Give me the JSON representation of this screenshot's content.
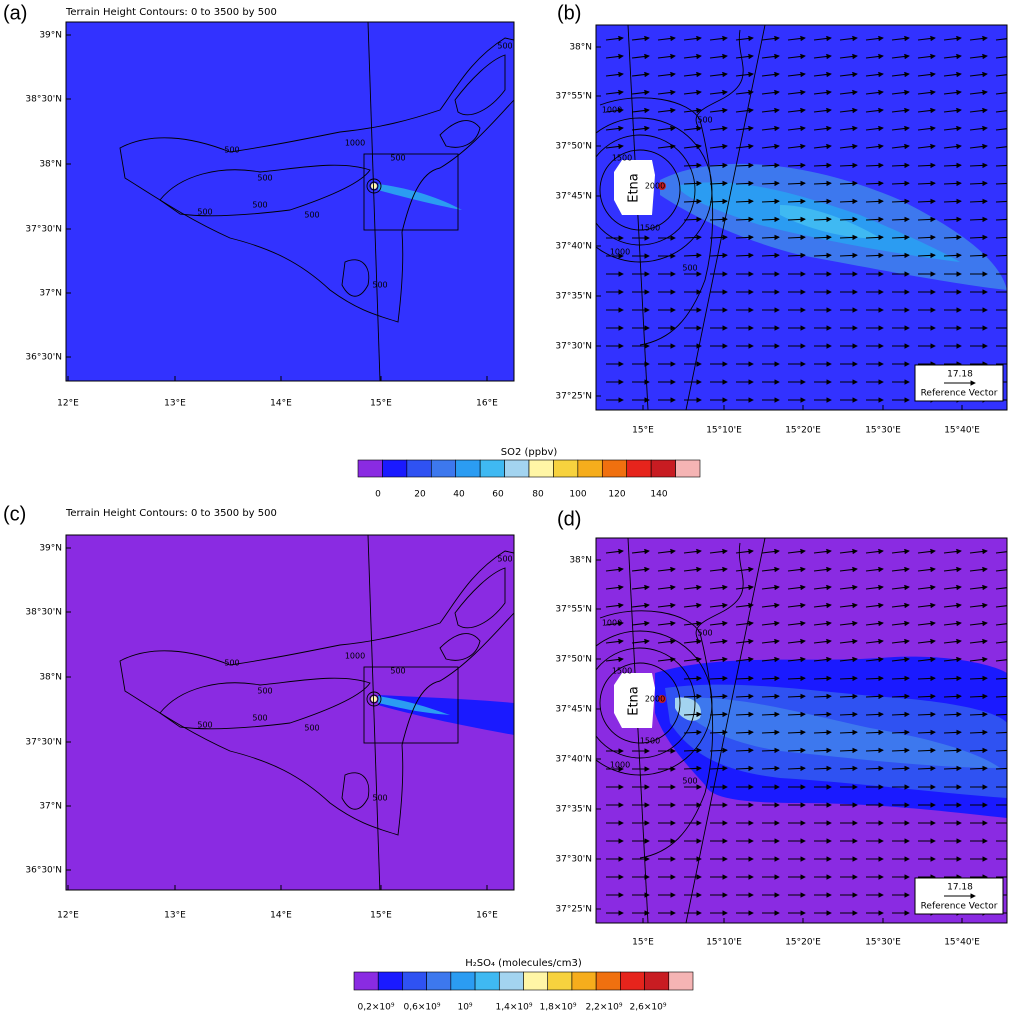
{
  "panels": [
    {
      "label": "(a)",
      "title": "Terrain Height Contours: 0 to 3500 by 500",
      "lat_labels": [
        "39°N",
        "38°30'N",
        "38°N",
        "37°30'N",
        "37°N",
        "36°30'N"
      ],
      "lon_labels": [
        "12°E",
        "13°E",
        "14°E",
        "15°E",
        "16°E"
      ],
      "contour_labels": [
        "500",
        "500",
        "500",
        "1000",
        "500",
        "500",
        "500",
        "500",
        "500"
      ]
    },
    {
      "label": "(b)",
      "lat_labels": [
        "38°N",
        "37°55'N",
        "37°50'N",
        "37°45'N",
        "37°40'N",
        "37°35'N",
        "37°30'N",
        "37°25'N"
      ],
      "lon_labels": [
        "15°E",
        "15°10'E",
        "15°20'E",
        "15°30'E",
        "15°40'E"
      ],
      "contour_labels": [
        "1000",
        "500",
        "1500",
        "2000",
        "1500",
        "1000",
        "500"
      ],
      "marker": "Etna",
      "reference": {
        "value": "17.18",
        "label": "Reference Vector"
      }
    },
    {
      "label": "(c)",
      "title": "Terrain Height Contours: 0 to 3500 by 500",
      "lat_labels": [
        "39°N",
        "38°30'N",
        "38°N",
        "37°30'N",
        "37°N",
        "36°30'N"
      ],
      "lon_labels": [
        "12°E",
        "13°E",
        "14°E",
        "15°E",
        "16°E"
      ],
      "contour_labels": [
        "500",
        "500",
        "500",
        "1000",
        "500",
        "500",
        "500",
        "500",
        "500"
      ]
    },
    {
      "label": "(d)",
      "lat_labels": [
        "38°N",
        "37°55'N",
        "37°50'N",
        "37°45'N",
        "37°40'N",
        "37°35'N",
        "37°30'N",
        "37°25'N"
      ],
      "lon_labels": [
        "15°E",
        "15°10'E",
        "15°20'E",
        "15°30'E",
        "15°40'E"
      ],
      "contour_labels": [
        "1000",
        "500",
        "1500",
        "2000",
        "1500",
        "1000",
        "500"
      ],
      "marker": "Etna",
      "reference": {
        "value": "17.18",
        "label": "Reference Vector"
      }
    }
  ],
  "colorbars": [
    {
      "title": "SO2 (ppbv)",
      "labels": [
        0,
        20,
        40,
        60,
        80,
        100,
        120,
        140
      ],
      "colors": [
        "#8a2be2",
        "#1a1aff",
        "#2f52f2",
        "#3d78ee",
        "#2b9cf2",
        "#3fb9f2",
        "#a3d4f0",
        "#fff6a6",
        "#f7d23e",
        "#f6ad1c",
        "#f0700f",
        "#e6241c",
        "#c81c22",
        "#f5b4b4"
      ]
    },
    {
      "title": "H₂SO₄ (molecules/cm3)",
      "labels": [
        "0,2×10⁹",
        "0,6×10⁹",
        "10⁹",
        "1,4×10⁹",
        "1,8×10⁹",
        "2,2×10⁹",
        "2,6×10⁹"
      ],
      "colors": [
        "#8a2be2",
        "#1a1aff",
        "#2f52f2",
        "#3d78ee",
        "#2b9cf2",
        "#3fb9f2",
        "#a3d4f0",
        "#fff6a6",
        "#f7d23e",
        "#f6ad1c",
        "#f0700f",
        "#e6241c",
        "#c81c22",
        "#f5b4b4"
      ]
    }
  ]
}
